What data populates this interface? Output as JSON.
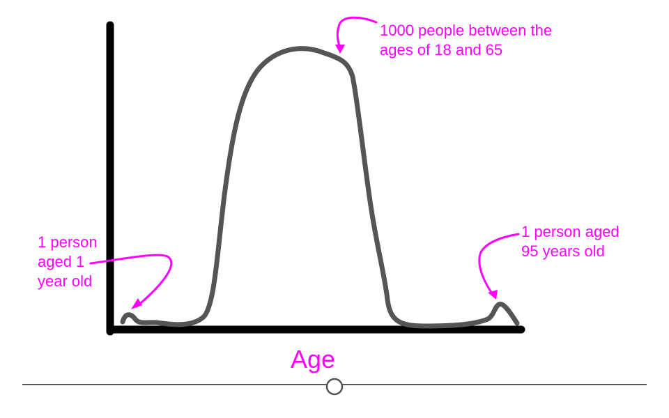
{
  "diagram": {
    "x_axis_label": "Age",
    "annotations": {
      "left": [
        "1 person",
        "aged 1",
        "year old"
      ],
      "top": [
        "1000 people between the",
        "ages of 18 and 65"
      ],
      "right": [
        "1 person aged",
        "95 years old"
      ]
    },
    "colors": {
      "axis": "#000000",
      "curve": "#555555",
      "annotation": "#ff00ff",
      "slider_line": "#555555"
    }
  },
  "slider": {
    "value": 0.5
  }
}
